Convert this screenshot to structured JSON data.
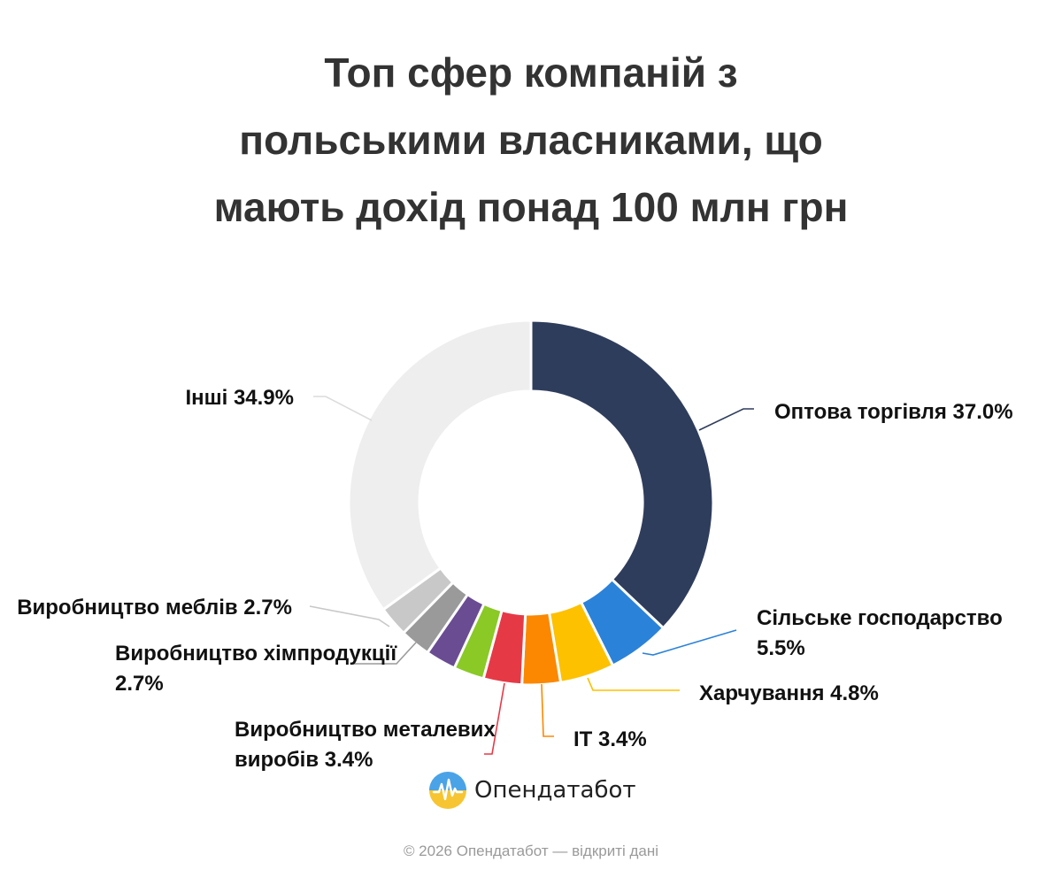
{
  "title": {
    "lines": [
      "Топ сфер компаній з",
      "польськими власниками, що",
      "мають дохід понад 100 млн грн"
    ]
  },
  "chart_data": {
    "type": "pie",
    "style": "donut",
    "title": "Топ сфер компаній з польськими власниками, що мають дохід понад 100 млн грн",
    "unit": "%",
    "slices": [
      {
        "label": "Оптова торгівля",
        "value": 37.0,
        "display": "Оптова торгівля 37.0%",
        "color": "#2f3d5c"
      },
      {
        "label": "Сільське господарство",
        "value": 5.5,
        "display": "Сільське господарство 5.5%",
        "color": "#2b82d9"
      },
      {
        "label": "Харчування",
        "value": 4.8,
        "display": "Харчування 4.8%",
        "color": "#fdc100"
      },
      {
        "label": "IT",
        "value": 3.4,
        "display": "IT 3.4%",
        "color": "#fb8800"
      },
      {
        "label": "Виробництво металевих виробів",
        "value": 3.4,
        "display": "Виробництво металевих виробів 3.4%",
        "color": "#e63946"
      },
      {
        "label": "",
        "value": 2.7,
        "display": "",
        "color": "#8ac926"
      },
      {
        "label": "",
        "value": 2.7,
        "display": "",
        "color": "#6a4c93"
      },
      {
        "label": "Виробництво хімпродукції",
        "value": 2.7,
        "display": "Виробництво хімпродукції 2.7%",
        "color": "#9a9a9a"
      },
      {
        "label": "Виробництво меблів",
        "value": 2.7,
        "display": "Виробництво меблів 2.7%",
        "color": "#c8c8c8"
      },
      {
        "label": "Інші",
        "value": 34.9,
        "display": "Інші 34.9%",
        "color": "#eeeeee"
      }
    ]
  },
  "logo": {
    "text": "Опендатабот"
  },
  "footer": {
    "text": "© 2026 Опендатабот — відкриті дані"
  }
}
